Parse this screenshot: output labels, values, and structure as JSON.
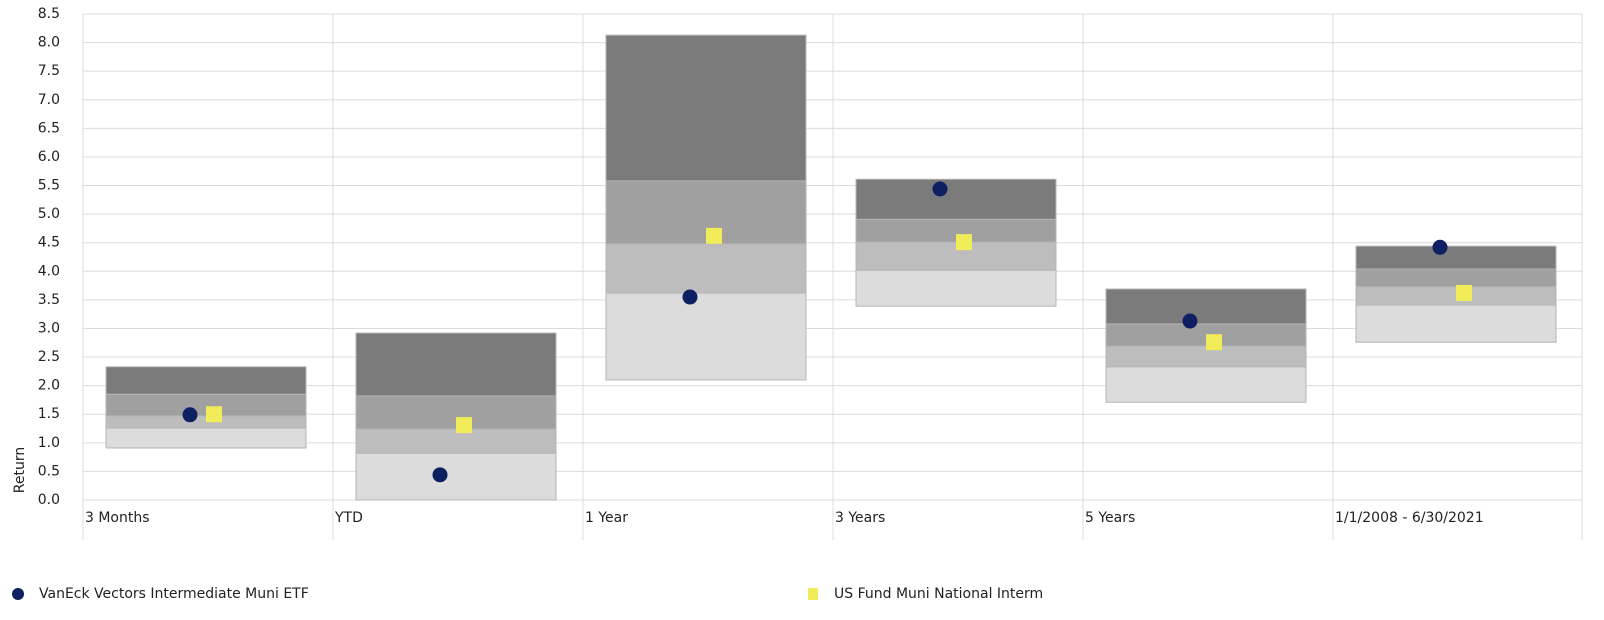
{
  "chart_data": {
    "type": "floating-band",
    "y_label": "Return",
    "categories": [
      "3 Months",
      "YTD",
      "1 Year",
      "3 Years",
      "5 Years",
      "1/1/2008 - 6/30/2021"
    ],
    "bands": [
      [
        0.91,
        1.26,
        1.47,
        1.85,
        2.33
      ],
      [
        0,
        0.82,
        1.24,
        1.82,
        2.92
      ],
      [
        2.1,
        3.62,
        4.48,
        5.58,
        8.13
      ],
      [
        3.39,
        4.02,
        4.51,
        4.91,
        5.61
      ],
      [
        1.71,
        2.33,
        2.69,
        3.08,
        3.69
      ],
      [
        2.76,
        3.41,
        3.73,
        4.04,
        4.44
      ]
    ],
    "band_colors": [
      "#dcdcdc",
      "#bdbdbd",
      "#a0a0a1",
      "#7b7b7c"
    ],
    "series": [
      {
        "name": "VanEck Vectors Intermediate Muni ETF",
        "color": "#0f2062",
        "marker": "circle",
        "values": [
          1.49,
          0.44,
          3.55,
          5.44,
          3.13,
          4.42
        ]
      },
      {
        "name": "US Fund Muni National Interm",
        "color": "#f0ec5a",
        "marker": "square",
        "values": [
          1.5,
          1.31,
          4.62,
          4.51,
          2.76,
          3.62
        ]
      }
    ],
    "ylim": [
      0,
      8.5
    ],
    "yticks": [
      {
        "value": 0,
        "label": "0.0"
      },
      0.5,
      {
        "value": 1,
        "label": "1.0"
      },
      1.5,
      {
        "value": 2,
        "label": "2.0"
      },
      2.5,
      {
        "value": 3,
        "label": "3.0"
      },
      3.5,
      {
        "value": 4,
        "label": "4.0"
      },
      4.5,
      {
        "value": 5,
        "label": "5.0"
      },
      5.5,
      {
        "value": 6,
        "label": "6.0"
      },
      6.5,
      {
        "value": 7,
        "label": "7.0"
      },
      7.5,
      {
        "value": 8,
        "label": "8.0"
      },
      8.5
    ],
    "grid": true
  }
}
